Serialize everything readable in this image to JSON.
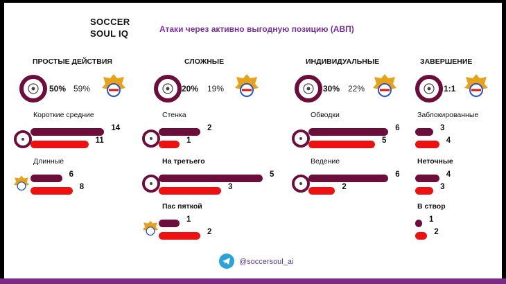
{
  "brand": {
    "line1": "SOCCER",
    "line2": "SOUL IQ"
  },
  "title": "Атаки через активно выгодную позицию (АВП)",
  "footer": {
    "handle": "@soccersoul_ai",
    "icon": "telegram-icon"
  },
  "colors": {
    "team_a": "#6d0d3c",
    "team_b": "#ee1111",
    "accent": "#7a2fa0"
  },
  "chart_data": [
    {
      "type": "bar",
      "title": "ПРОСТЫЕ ДЕЙСТВИЯ",
      "summary": {
        "a": "50%",
        "b": "59%"
      },
      "categories": [
        "Короткие  средние",
        "Длинные"
      ],
      "series": [
        {
          "values": [
            14,
            6
          ]
        },
        {
          "values": [
            11,
            8
          ]
        }
      ]
    },
    {
      "type": "bar",
      "title": "СЛОЖНЫЕ",
      "summary": {
        "a": "20%",
        "b": "19%"
      },
      "categories": [
        "Стенка",
        "На третьего",
        "Пас  пяткой"
      ],
      "series": [
        {
          "values": [
            2,
            5,
            1
          ]
        },
        {
          "values": [
            1,
            3,
            2
          ]
        }
      ]
    },
    {
      "type": "bar",
      "title": "ИНДИВИДУАЛЬНЫЕ",
      "summary": {
        "a": "30%",
        "b": "22%"
      },
      "categories": [
        "Обводки",
        "Ведение"
      ],
      "series": [
        {
          "values": [
            6,
            6
          ]
        },
        {
          "values": [
            5,
            2
          ]
        }
      ]
    },
    {
      "type": "bar",
      "title": "ЗАВЕРШЕНИЕ",
      "summary": {
        "combined": "1:1"
      },
      "categories": [
        "Заблокированные",
        "Неточные",
        "В створ"
      ],
      "series": [
        {
          "values": [
            3,
            4,
            1
          ]
        },
        {
          "values": [
            4,
            3,
            2
          ]
        }
      ]
    }
  ]
}
